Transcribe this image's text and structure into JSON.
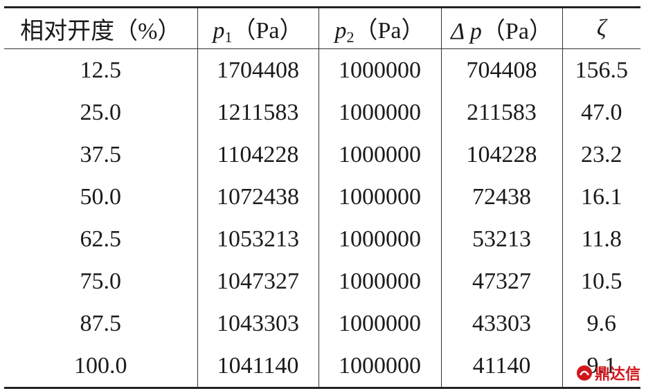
{
  "table": {
    "header": [
      "相对开度（%）",
      {
        "symbol": "p",
        "sub": "1",
        "unit": "（Pa）"
      },
      {
        "symbol": "p",
        "sub": "2",
        "unit": "（Pa）"
      },
      {
        "symbol": "Δ p",
        "unit": "（Pa）"
      },
      "ζ"
    ],
    "rows": [
      [
        "12.5",
        "1704408",
        "1000000",
        "704408",
        "156.5"
      ],
      [
        "25.0",
        "1211583",
        "1000000",
        "211583",
        "47.0"
      ],
      [
        "37.5",
        "1104228",
        "1000000",
        "104228",
        "23.2"
      ],
      [
        "50.0",
        "1072438",
        "1000000",
        "72438",
        "16.1"
      ],
      [
        "62.5",
        "1053213",
        "1000000",
        "53213",
        "11.8"
      ],
      [
        "75.0",
        "1047327",
        "1000000",
        "47327",
        "10.5"
      ],
      [
        "87.5",
        "1043303",
        "1000000",
        "43303",
        "9.6"
      ],
      [
        "100.0",
        "1041140",
        "1000000",
        "41140",
        "9.1"
      ]
    ]
  },
  "watermark": "鼎达信"
}
